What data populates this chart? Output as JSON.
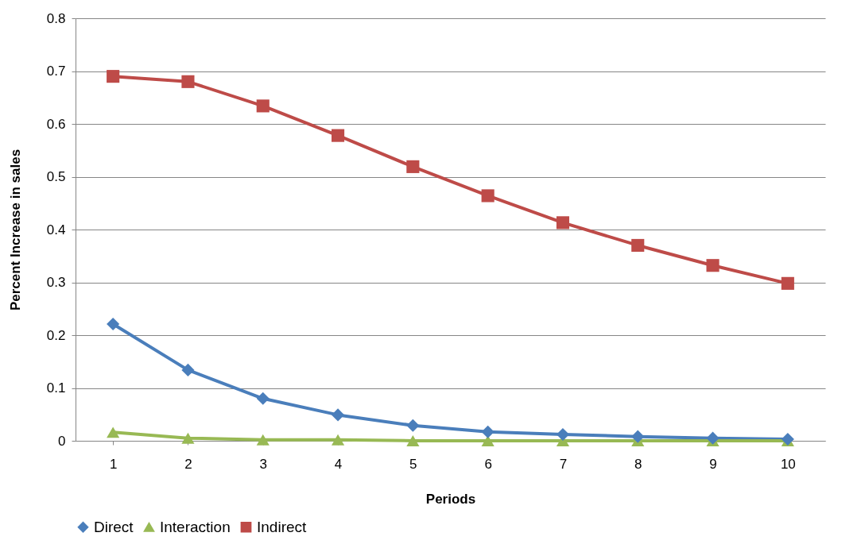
{
  "chart_data": {
    "type": "line",
    "xlabel": "Periods",
    "ylabel": "Percent Increase in sales",
    "categories": [
      "1",
      "2",
      "3",
      "4",
      "5",
      "6",
      "7",
      "8",
      "9",
      "10"
    ],
    "series": [
      {
        "name": "Direct",
        "color": "#4a7ebb",
        "marker": "diamond",
        "values": [
          0.221,
          0.134,
          0.08,
          0.049,
          0.029,
          0.017,
          0.012,
          0.008,
          0.005,
          0.003
        ]
      },
      {
        "name": "Interaction",
        "color": "#98b954",
        "marker": "triangle",
        "values": [
          0.016,
          0.005,
          0.002,
          0.002,
          0,
          0,
          0,
          0,
          0,
          0
        ]
      },
      {
        "name": "Indirect",
        "color": "#be4b48",
        "marker": "square",
        "values": [
          0.69,
          0.68,
          0.634,
          0.578,
          0.519,
          0.464,
          0.413,
          0.37,
          0.332,
          0.298
        ]
      }
    ],
    "ylim": [
      0,
      0.8
    ],
    "yticks": [
      0,
      0.1,
      0.2,
      0.3,
      0.4,
      0.5,
      0.6,
      0.7,
      0.8
    ],
    "grid": "y",
    "legend": "bottom"
  }
}
